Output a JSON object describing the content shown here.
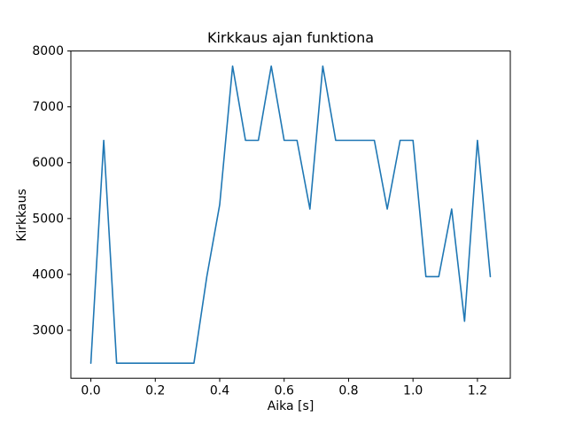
{
  "figure": {
    "background": "#ffffff",
    "line_color": "#1f77b4",
    "spine_color": "#000000"
  },
  "chart_data": {
    "type": "line",
    "title": "Kirkkaus ajan funktiona",
    "xlabel": "Aika [s]",
    "ylabel": "Kirkkaus",
    "x": [
      0.0,
      0.04,
      0.08,
      0.12,
      0.16,
      0.2,
      0.24,
      0.28,
      0.32,
      0.36,
      0.4,
      0.44,
      0.48,
      0.52,
      0.56,
      0.6,
      0.64,
      0.68,
      0.72,
      0.76,
      0.8,
      0.84,
      0.88,
      0.92,
      0.96,
      1.0,
      1.04,
      1.08,
      1.12,
      1.16,
      1.2,
      1.24
    ],
    "y": [
      2410,
      6400,
      2410,
      2410,
      2410,
      2410,
      2410,
      2410,
      2410,
      3960,
      5250,
      7730,
      6400,
      6400,
      7730,
      6400,
      6400,
      5170,
      7730,
      6400,
      6400,
      6400,
      6400,
      5170,
      6400,
      6400,
      3960,
      3960,
      5170,
      3160,
      6400,
      3960
    ],
    "xlim": [
      -0.062,
      1.302
    ],
    "ylim": [
      2140,
      8000
    ],
    "xticks": [
      0.0,
      0.2,
      0.4,
      0.6,
      0.8,
      1.0,
      1.2
    ],
    "yticks": [
      3000,
      4000,
      5000,
      6000,
      7000,
      8000
    ],
    "grid": false,
    "legend_position": "none"
  }
}
